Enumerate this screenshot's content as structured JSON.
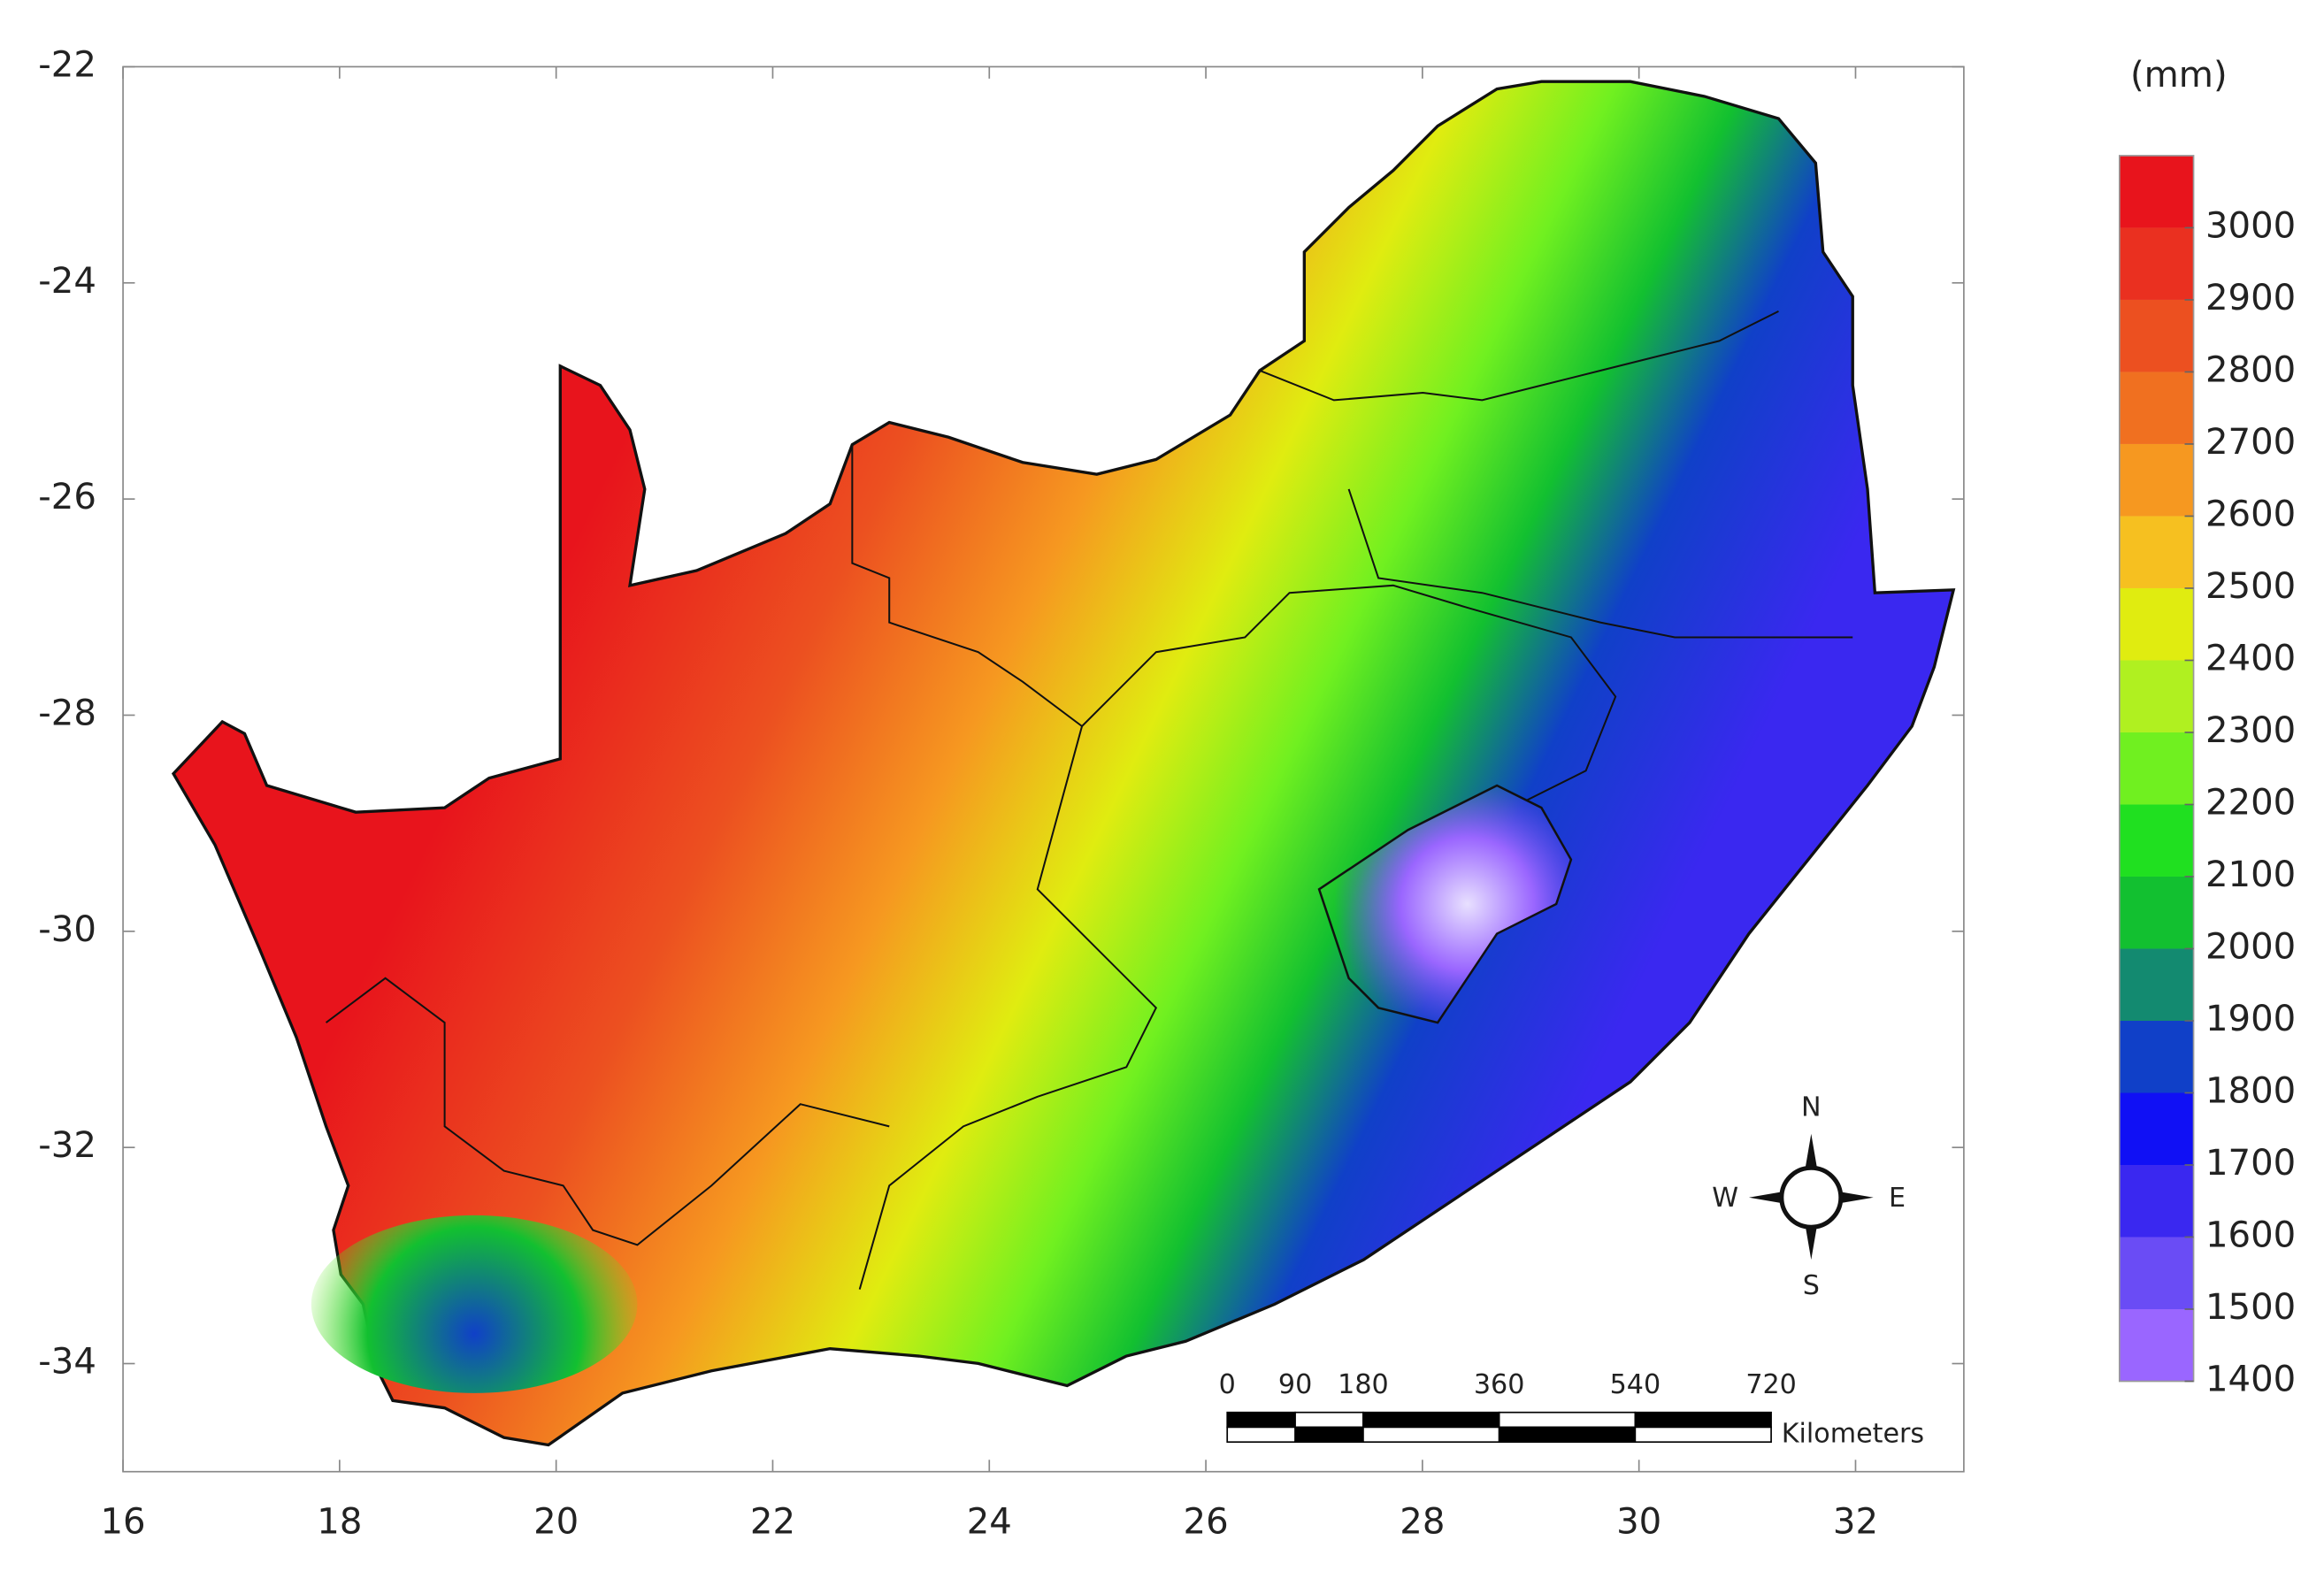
{
  "map": {
    "xlim": [
      16,
      33
    ],
    "ylim": [
      -35,
      -22
    ],
    "xticks": [
      16,
      18,
      20,
      22,
      24,
      26,
      28,
      30,
      32
    ],
    "yticks": [
      -22,
      -24,
      -26,
      -28,
      -30,
      -32,
      -34
    ],
    "colorbar": {
      "label": "(mm)",
      "range": [
        1400,
        3100
      ],
      "ticks": [
        1400,
        1500,
        1600,
        1700,
        1800,
        1900,
        2000,
        2100,
        2200,
        2300,
        2400,
        2500,
        2600,
        2700,
        2800,
        2900,
        3000
      ],
      "colors": [
        "#9a66ff",
        "#6a4cf5",
        "#3a28f0",
        "#1010f5",
        "#1040c8",
        "#138a70",
        "#12c030",
        "#20e020",
        "#70f020",
        "#b0f020",
        "#e0ec10",
        "#f6c020",
        "#f69820",
        "#f07020",
        "#ec5020",
        "#ea3020",
        "#e8141c"
      ]
    },
    "scale_bar": {
      "ticks": [
        0,
        90,
        180,
        360,
        540,
        720
      ],
      "unit": "Kilometers"
    },
    "compass": {
      "north": "N",
      "east": "E",
      "south": "S",
      "west": "W"
    }
  }
}
